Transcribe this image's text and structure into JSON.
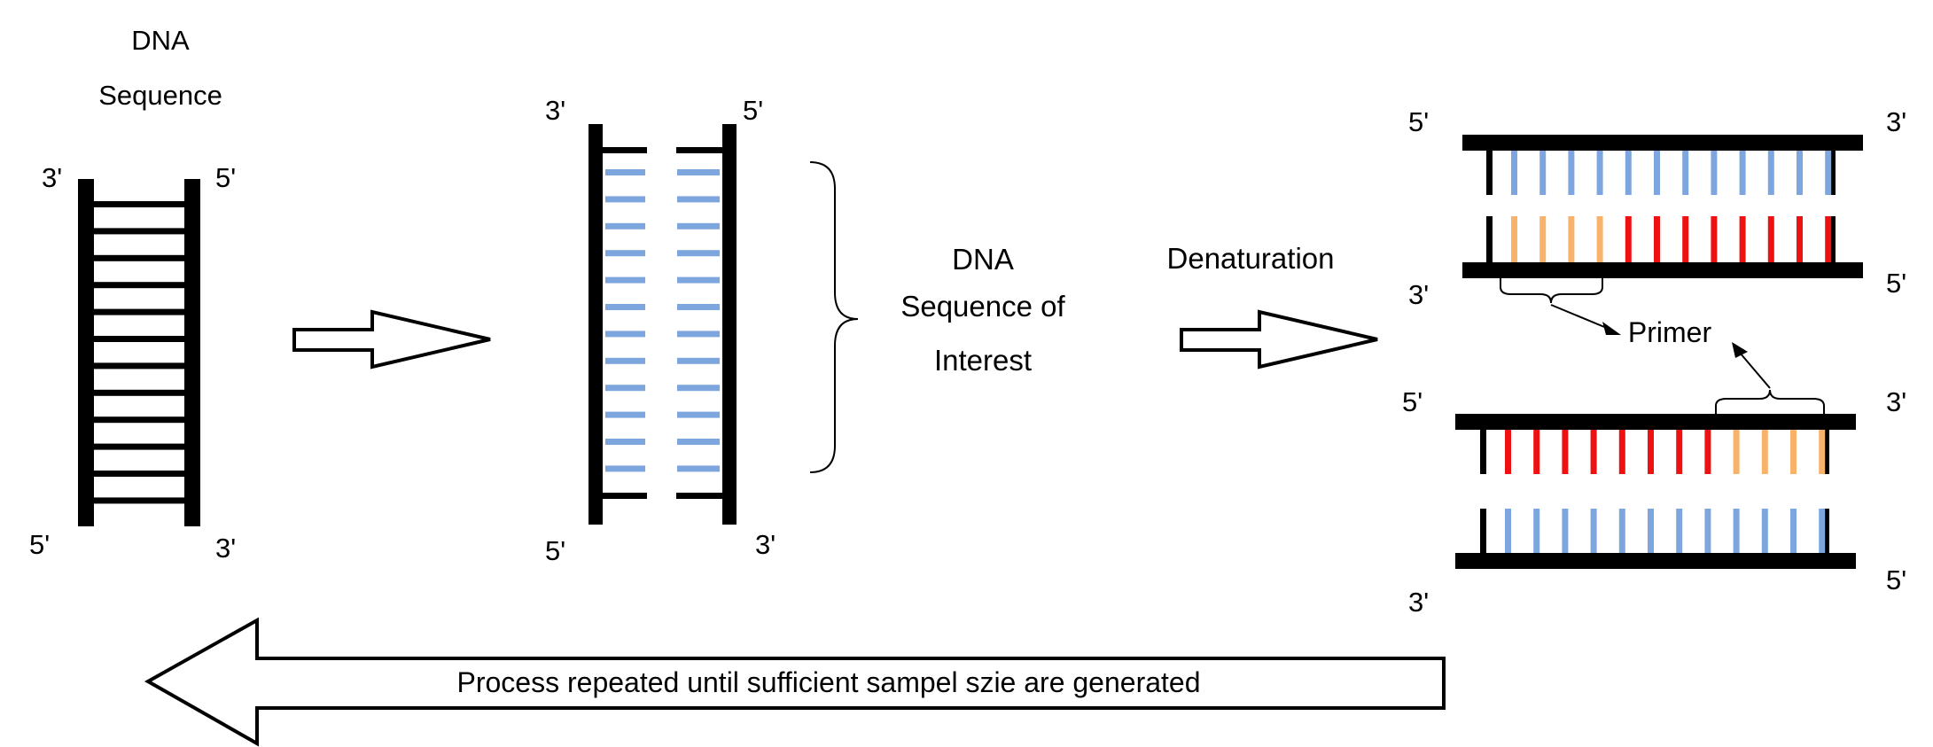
{
  "diagram": {
    "dna_title": [
      "DNA",
      "Sequence"
    ],
    "interest_label": [
      "DNA",
      "Sequence of",
      "Interest"
    ],
    "step_label": "Denaturation",
    "primer_label": "Primer",
    "loop_label": "Process repeated until sufficient sampel szie are generated"
  },
  "ends": {
    "three": "3'",
    "five": "5'"
  },
  "colors": {
    "backbone": "#000000",
    "blue_base": "#7EA6DE",
    "primer_base": "#F8B26A",
    "red_base": "#EE1111",
    "background": "#ffffff"
  }
}
